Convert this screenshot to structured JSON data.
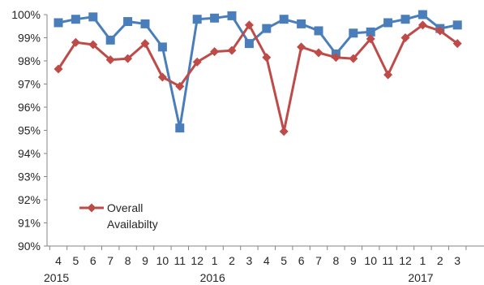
{
  "chart_data": {
    "type": "line",
    "title": "",
    "xlabel": "",
    "ylabel": "",
    "ylim": [
      90,
      100
    ],
    "grid": false,
    "legend_position": "lower-left",
    "categories": [
      "4",
      "5",
      "6",
      "7",
      "8",
      "9",
      "10",
      "11",
      "12",
      "1",
      "2",
      "3",
      "4",
      "5",
      "6",
      "7",
      "8",
      "9",
      "10",
      "11",
      "12",
      "1",
      "2",
      "3"
    ],
    "year_labels": [
      {
        "text": "2015",
        "index": 0
      },
      {
        "text": "2016",
        "index": 9
      },
      {
        "text": "2017",
        "index": 21
      }
    ],
    "y_ticks": [
      90,
      91,
      92,
      93,
      94,
      95,
      96,
      97,
      98,
      99,
      100
    ],
    "y_tick_labels": [
      "90%",
      "91%",
      "92%",
      "93%",
      "94%",
      "95%",
      "96%",
      "97%",
      "98%",
      "99%",
      "100%"
    ],
    "series": [
      {
        "values": [
          99.65,
          99.8,
          99.9,
          98.9,
          99.7,
          99.6,
          98.6,
          95.1,
          99.8,
          99.85,
          99.95,
          98.75,
          99.4,
          99.8,
          99.6,
          99.3,
          98.3,
          99.2,
          99.25,
          99.65,
          99.8,
          100.0,
          99.4,
          99.55
        ],
        "color": "#4a7ebb",
        "marker": "square"
      },
      {
        "name": "Overall Availabilty",
        "legend_lines": [
          "Overall",
          "Availabilty"
        ],
        "values": [
          97.65,
          98.8,
          98.7,
          98.05,
          98.1,
          98.75,
          97.3,
          96.9,
          97.95,
          98.4,
          98.45,
          99.55,
          98.15,
          94.95,
          98.6,
          98.35,
          98.15,
          98.1,
          98.95,
          97.4,
          99.0,
          99.55,
          99.3,
          98.75
        ],
        "color": "#be4b48",
        "marker": "diamond"
      }
    ]
  }
}
